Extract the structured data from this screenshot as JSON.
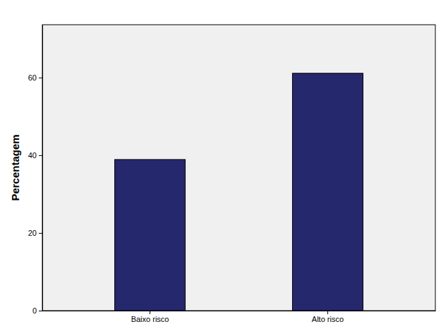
{
  "chart_data": {
    "type": "bar",
    "y_label": "Percentagem",
    "categories": [
      "Baixo risco",
      "Alto risco"
    ],
    "values": [
      38.9,
      61.1
    ],
    "color": "#26286e",
    "ylim": [
      0,
      73.6
    ],
    "yticks": [
      0,
      20,
      40,
      60
    ],
    "grid": false
  }
}
